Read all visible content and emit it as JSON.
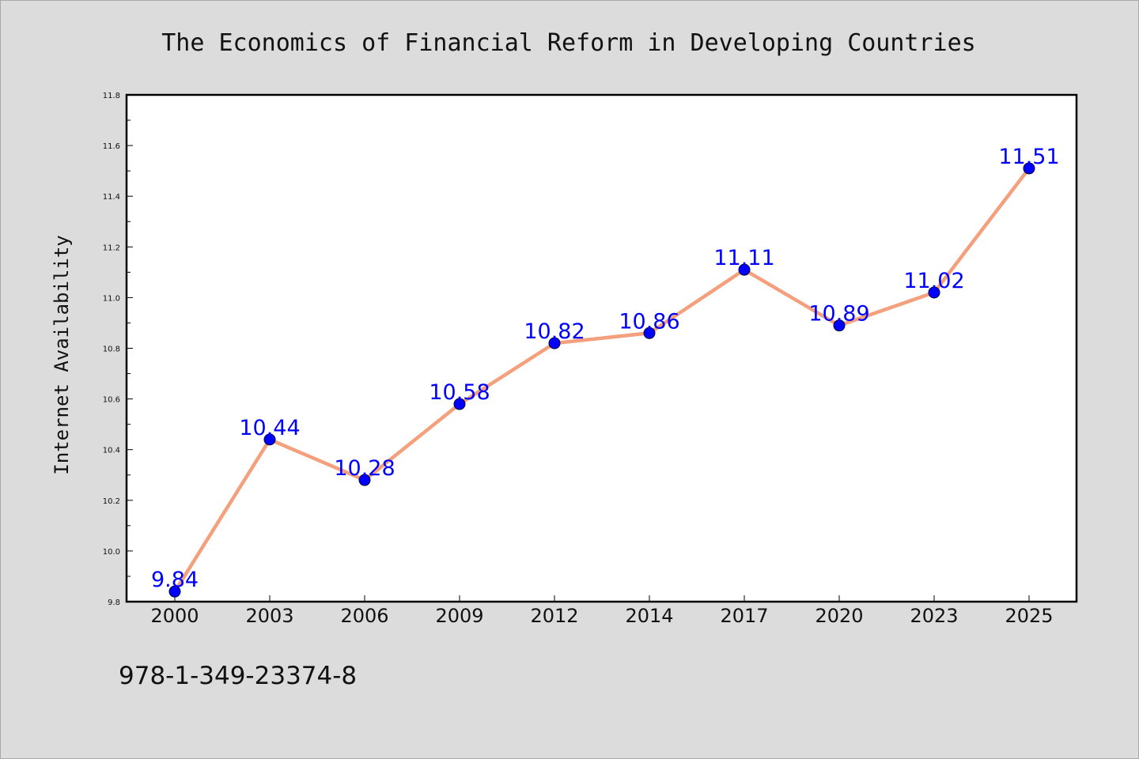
{
  "chart_data": {
    "type": "line",
    "title": "The Economics of Financial Reform in Developing Countries",
    "xlabel": "",
    "ylabel": "Internet Availability",
    "categories": [
      "2000",
      "2003",
      "2006",
      "2009",
      "2012",
      "2014",
      "2017",
      "2020",
      "2023",
      "2025"
    ],
    "values": [
      9.84,
      10.44,
      10.28,
      10.58,
      10.82,
      10.86,
      11.11,
      10.89,
      11.02,
      11.51
    ],
    "data_labels": [
      "9.84",
      "10.44",
      "10.28",
      "10.58",
      "10.82",
      "10.86",
      "11.11",
      "10.89",
      "11.02",
      "11.51"
    ],
    "ylim": [
      9.8,
      11.8
    ],
    "yticks": [
      "9.8",
      "10.0",
      "10.2",
      "10.4",
      "10.6",
      "10.8",
      "11.0",
      "11.2",
      "11.4",
      "11.6",
      "11.8"
    ],
    "grid": false,
    "legend": "none",
    "colors": {
      "line": "#f4a07c",
      "marker": "#0000ff",
      "label": "#0000ff",
      "background": "#dcdcdc",
      "plot_area": "#ffffff"
    }
  },
  "footer": {
    "isbn": "978-1-349-23374-8"
  }
}
